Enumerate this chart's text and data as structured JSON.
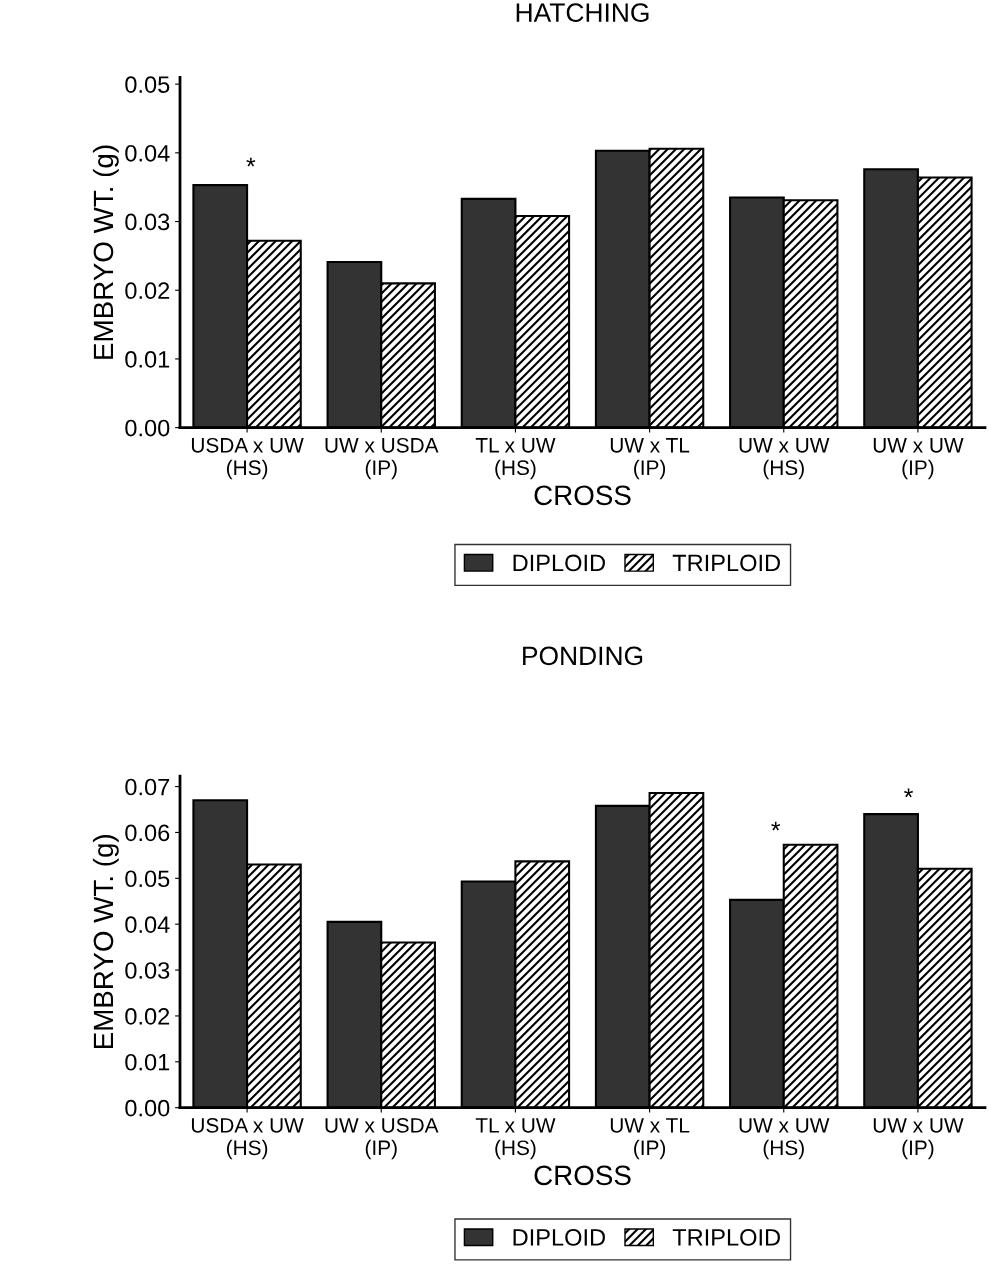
{
  "chart_data": [
    {
      "type": "bar",
      "title": "HATCHING",
      "xlabel": "CROSS",
      "ylabel": "EMBRYO WT. (g)",
      "categories": [
        "USDA x UW\n(HS)",
        "UW x USDA\n(IP)",
        "TL x UW\n(HS)",
        "UW x TL\n(IP)",
        "UW x UW\n(HS)",
        "UW x UW\n(IP)"
      ],
      "series": [
        {
          "name": "DIPLOID",
          "color": "#333333",
          "values": [
            0.0353,
            0.0241,
            0.0333,
            0.0403,
            0.0335,
            0.0376
          ]
        },
        {
          "name": "TRIPLOID",
          "color": "#000000",
          "values": [
            0.0272,
            0.021,
            0.0308,
            0.0406,
            0.0331,
            0.0364
          ]
        }
      ],
      "ylim": [
        0,
        0.051
      ],
      "yticks": [
        {
          "value": 0,
          "label": "0.00"
        },
        0.01,
        0.02,
        0.03,
        0.04,
        0.05
      ],
      "annotations": [
        "*"
      ],
      "legend": "bottom",
      "grid": false
    },
    {
      "type": "bar",
      "title": "PONDING",
      "xlabel": "CROSS",
      "ylabel": "EMBRYO WT. (g)",
      "categories": [
        "USDA x UW\n(HS)",
        "UW x USDA\n(IP)",
        "TL x UW\n(HS)",
        "UW x TL\n(IP)",
        "UW x UW\n(HS)",
        "UW x UW\n(IP)"
      ],
      "series": [
        {
          "name": "DIPLOID",
          "color": "#333333",
          "values": [
            0.067,
            0.0405,
            0.0493,
            0.0658,
            0.0453,
            0.064
          ]
        },
        {
          "name": "TRIPLOID",
          "color": "#000000",
          "values": [
            0.053,
            0.036,
            0.0537,
            0.0686,
            0.0573,
            0.0521
          ]
        }
      ],
      "ylim": [
        0,
        0.0723
      ],
      "yticks": [
        {
          "value": 0,
          "label": "0.00"
        },
        0.01,
        0.02,
        0.03,
        0.04,
        0.05,
        0.06,
        0.07
      ],
      "annotations": [
        "*",
        "*"
      ],
      "legend": "bottom",
      "grid": false
    }
  ]
}
